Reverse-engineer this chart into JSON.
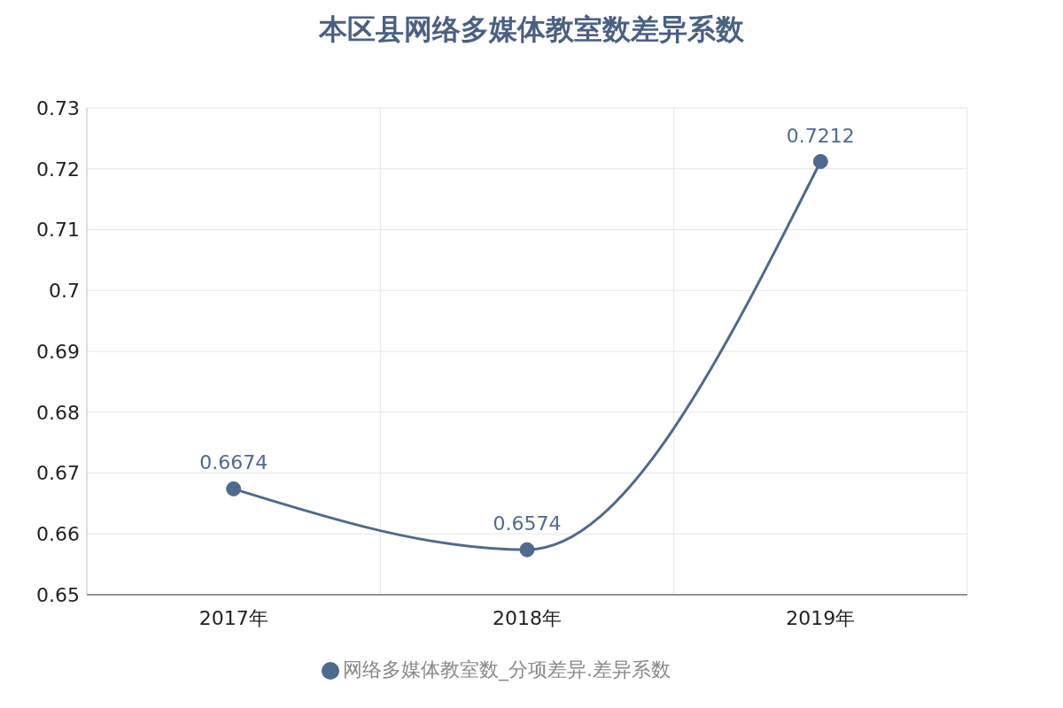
{
  "chart_data": {
    "type": "line",
    "title": "本区县网络多媒体教室数差异系数",
    "categories": [
      "2017年",
      "2018年",
      "2019年"
    ],
    "series": [
      {
        "name": "网络多媒体教室数_分项差异.差异系数",
        "color": "#4f6a8f",
        "values": [
          0.6674,
          0.6574,
          0.7212
        ]
      }
    ],
    "ylim": [
      0.65,
      0.73
    ],
    "yticks": [
      0.65,
      0.66,
      0.67,
      0.68,
      0.69,
      0.7,
      0.71,
      0.72,
      0.73
    ],
    "grid": true,
    "legend": "bottom",
    "marker": "circle",
    "line_style": "solid",
    "data_labels": true
  }
}
